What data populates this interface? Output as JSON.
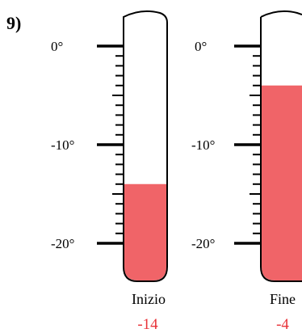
{
  "problem_number": "9)",
  "scale": {
    "labels": [
      {
        "text": "0°",
        "value": 0
      },
      {
        "text": "-10°",
        "value": -10
      },
      {
        "text": "-20°",
        "value": -20
      }
    ],
    "min": -20,
    "max": 0,
    "minor_step": 1
  },
  "thermometers": [
    {
      "caption": "Inizio",
      "value_label": "-14",
      "value": -14
    },
    {
      "caption": "Fine",
      "value_label": "-4",
      "value": -4
    }
  ],
  "colors": {
    "liquid": "#f06468",
    "value_text": "#e8343a",
    "outline": "#000000"
  }
}
